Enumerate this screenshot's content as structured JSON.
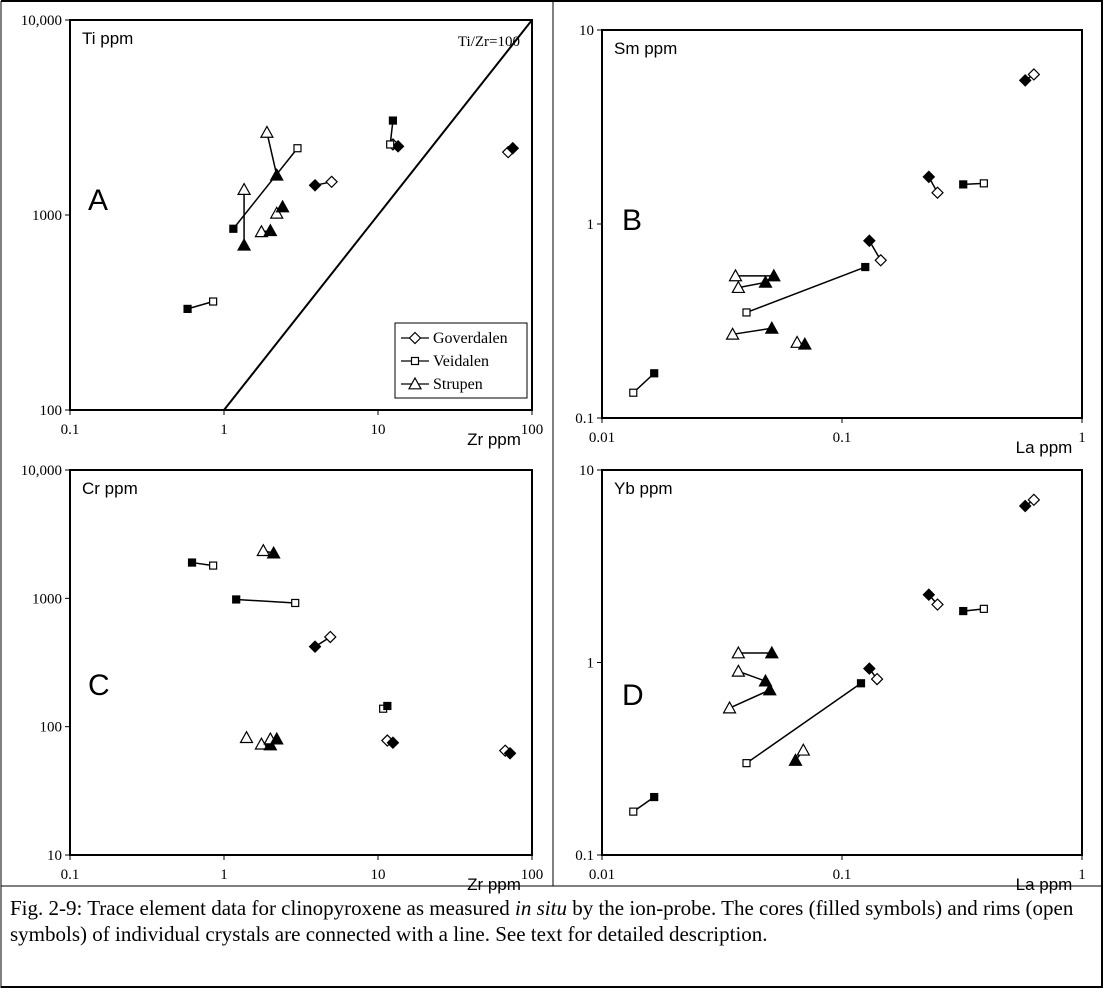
{
  "caption": {
    "prefix": "Fig. 2-9: Trace element data for clinopyroxene as measured ",
    "italic": "in situ",
    "suffix": " by the ion-probe. The cores (filled symbols) and rims (open symbols) of individual crystals are connected with a line. See text for detailed description."
  },
  "legend": {
    "entries": [
      {
        "name": "Goverdalen",
        "symbol": "diamond"
      },
      {
        "name": "Veidalen",
        "symbol": "square"
      },
      {
        "name": "Strupen",
        "symbol": "triangle"
      }
    ]
  },
  "chart_data": [
    {
      "type": "scatter",
      "panel_letter": "A",
      "ylabel": "Ti ppm",
      "xlabel": "Zr ppm",
      "xscale": "log",
      "yscale": "log",
      "xlim": [
        0.1,
        100
      ],
      "ylim": [
        100,
        10000
      ],
      "xticks": [
        "0.1",
        "1",
        "10",
        "100"
      ],
      "yticks": [
        "100",
        "1000",
        "10,000"
      ],
      "reference_line": {
        "label": "Ti/Zr=100",
        "points": [
          [
            1,
            100
          ],
          [
            100,
            10000
          ]
        ]
      },
      "pairs": [
        {
          "series": "Goverdalen",
          "core": [
            13.5,
            2250
          ],
          "rim": [
            12.5,
            2300
          ]
        },
        {
          "series": "Goverdalen",
          "core": [
            75,
            2200
          ],
          "rim": [
            70,
            2100
          ]
        },
        {
          "series": "Goverdalen",
          "core": [
            3.9,
            1420
          ],
          "rim": [
            5.0,
            1480
          ]
        },
        {
          "series": "Veidalen",
          "core": [
            12.5,
            3050
          ],
          "rim": [
            12,
            2300
          ]
        },
        {
          "series": "Veidalen",
          "core": [
            1.15,
            850
          ],
          "rim": [
            3.0,
            2200
          ]
        },
        {
          "series": "Veidalen",
          "core": [
            0.58,
            330
          ],
          "rim": [
            0.85,
            360
          ]
        },
        {
          "series": "Strupen",
          "core": [
            2.2,
            1600
          ],
          "rim": [
            1.9,
            2650
          ]
        },
        {
          "series": "Strupen",
          "core": [
            1.35,
            700
          ],
          "rim": [
            1.35,
            1350
          ]
        },
        {
          "series": "Strupen",
          "core": [
            2.4,
            1100
          ],
          "rim": [
            2.2,
            1020
          ]
        },
        {
          "series": "Strupen",
          "core": [
            2.0,
            830
          ],
          "rim": [
            1.75,
            820
          ]
        }
      ]
    },
    {
      "type": "scatter",
      "panel_letter": "B",
      "ylabel": "Sm ppm",
      "xlabel": "La ppm",
      "xscale": "log",
      "yscale": "log",
      "xlim": [
        0.01,
        1
      ],
      "ylim": [
        0.1,
        10
      ],
      "xticks": [
        "0.01",
        "0.1",
        "1"
      ],
      "yticks": [
        "0.1",
        "1",
        "10"
      ],
      "pairs": [
        {
          "series": "Goverdalen",
          "core": [
            0.58,
            5.5
          ],
          "rim": [
            0.63,
            5.9
          ]
        },
        {
          "series": "Goverdalen",
          "core": [
            0.23,
            1.75
          ],
          "rim": [
            0.25,
            1.45
          ]
        },
        {
          "series": "Goverdalen",
          "core": [
            0.13,
            0.82
          ],
          "rim": [
            0.145,
            0.65
          ]
        },
        {
          "series": "Veidalen",
          "core": [
            0.32,
            1.6
          ],
          "rim": [
            0.39,
            1.62
          ]
        },
        {
          "series": "Veidalen",
          "core": [
            0.125,
            0.6
          ],
          "rim": [
            0.04,
            0.35
          ]
        },
        {
          "series": "Veidalen",
          "core": [
            0.0165,
            0.17
          ],
          "rim": [
            0.0135,
            0.135
          ]
        },
        {
          "series": "Strupen",
          "core": [
            0.052,
            0.54
          ],
          "rim": [
            0.036,
            0.54
          ]
        },
        {
          "series": "Strupen",
          "core": [
            0.048,
            0.5
          ],
          "rim": [
            0.037,
            0.47
          ]
        },
        {
          "series": "Strupen",
          "core": [
            0.051,
            0.29
          ],
          "rim": [
            0.035,
            0.27
          ]
        },
        {
          "series": "Strupen",
          "core": [
            0.07,
            0.24
          ],
          "rim": [
            0.065,
            0.245
          ]
        }
      ]
    },
    {
      "type": "scatter",
      "panel_letter": "C",
      "ylabel": "Cr ppm",
      "xlabel": "Zr ppm",
      "xscale": "log",
      "yscale": "log",
      "xlim": [
        0.1,
        100
      ],
      "ylim": [
        10,
        10000
      ],
      "xticks": [
        "0.1",
        "1",
        "10",
        "100"
      ],
      "yticks": [
        "10",
        "100",
        "1000",
        "10,000"
      ],
      "pairs": [
        {
          "series": "Goverdalen",
          "core": [
            3.9,
            420
          ],
          "rim": [
            4.9,
            500
          ]
        },
        {
          "series": "Goverdalen",
          "core": [
            12.5,
            75
          ],
          "rim": [
            11.5,
            78
          ]
        },
        {
          "series": "Goverdalen",
          "core": [
            72,
            62
          ],
          "rim": [
            67,
            65
          ]
        },
        {
          "series": "Veidalen",
          "core": [
            0.62,
            1900
          ],
          "rim": [
            0.85,
            1800
          ]
        },
        {
          "series": "Veidalen",
          "core": [
            1.2,
            980
          ],
          "rim": [
            2.9,
            920
          ]
        },
        {
          "series": "Veidalen",
          "core": [
            11.5,
            145
          ],
          "rim": [
            10.8,
            138
          ]
        },
        {
          "series": "Strupen",
          "core": [
            2.1,
            2250
          ],
          "rim": [
            1.8,
            2350
          ]
        },
        {
          "series": "Strupen",
          "core": [
            2.0,
            72
          ],
          "rim": [
            1.75,
            73
          ]
        },
        {
          "series": "Strupen",
          "core": [
            2.2,
            80
          ],
          "rim": [
            2.0,
            80
          ]
        },
        {
          "series": "Strupen",
          "core": [
            null,
            null
          ],
          "rim": [
            1.4,
            82
          ]
        }
      ]
    },
    {
      "type": "scatter",
      "panel_letter": "D",
      "ylabel": "Yb ppm",
      "xlabel": "La ppm",
      "xscale": "log",
      "yscale": "log",
      "xlim": [
        0.01,
        1
      ],
      "ylim": [
        0.1,
        10
      ],
      "xticks": [
        "0.01",
        "0.1",
        "1"
      ],
      "yticks": [
        "0.1",
        "1",
        "10"
      ],
      "pairs": [
        {
          "series": "Goverdalen",
          "core": [
            0.58,
            6.5
          ],
          "rim": [
            0.63,
            7.0
          ]
        },
        {
          "series": "Goverdalen",
          "core": [
            0.23,
            2.25
          ],
          "rim": [
            0.25,
            2.0
          ]
        },
        {
          "series": "Goverdalen",
          "core": [
            0.13,
            0.93
          ],
          "rim": [
            0.14,
            0.82
          ]
        },
        {
          "series": "Veidalen",
          "core": [
            0.32,
            1.85
          ],
          "rim": [
            0.39,
            1.9
          ]
        },
        {
          "series": "Veidalen",
          "core": [
            0.12,
            0.78
          ],
          "rim": [
            0.04,
            0.3
          ]
        },
        {
          "series": "Veidalen",
          "core": [
            0.0165,
            0.2
          ],
          "rim": [
            0.0135,
            0.168
          ]
        },
        {
          "series": "Strupen",
          "core": [
            0.051,
            1.12
          ],
          "rim": [
            0.037,
            1.12
          ]
        },
        {
          "series": "Strupen",
          "core": [
            0.048,
            0.8
          ],
          "rim": [
            0.037,
            0.9
          ]
        },
        {
          "series": "Strupen",
          "core": [
            0.05,
            0.72
          ],
          "rim": [
            0.034,
            0.58
          ]
        },
        {
          "series": "Strupen",
          "core": [
            0.064,
            0.31
          ],
          "rim": [
            0.069,
            0.35
          ]
        }
      ]
    }
  ]
}
